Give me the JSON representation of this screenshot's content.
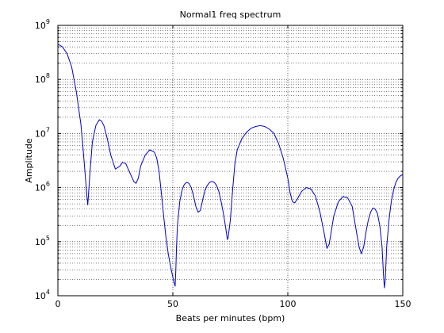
{
  "chart_data": {
    "type": "line",
    "title": "Normal1 freq spectrum",
    "xlabel": "Beats per minutes (bpm)",
    "ylabel": "Amplitude",
    "xlim": [
      0,
      150
    ],
    "ylim": [
      10000,
      1000000000
    ],
    "yscale": "log",
    "grid": true,
    "x_ticks": [
      0,
      50,
      100,
      150
    ],
    "x_tick_labels": [
      "0",
      "50",
      "100",
      "150"
    ],
    "y_ticks": [
      10000,
      100000,
      1000000,
      10000000,
      100000000,
      1000000000
    ],
    "y_tick_labels": [
      {
        "base": "10",
        "exp": "4"
      },
      {
        "base": "10",
        "exp": "5"
      },
      {
        "base": "10",
        "exp": "6"
      },
      {
        "base": "10",
        "exp": "7"
      },
      {
        "base": "10",
        "exp": "8"
      },
      {
        "base": "10",
        "exp": "9"
      }
    ],
    "series": [
      {
        "color": "#0000cc",
        "x": [
          0,
          2,
          4,
          6,
          8,
          10,
          11,
          12,
          12.6,
          13,
          14,
          15,
          16.5,
          18,
          19,
          20,
          21.5,
          23,
          25,
          27,
          28,
          29.5,
          31,
          33,
          34,
          35,
          36,
          38,
          40,
          42,
          43,
          44,
          45,
          46,
          47,
          48,
          49,
          50,
          50.5,
          51,
          51.3,
          51.6,
          52,
          53,
          54,
          55,
          56,
          57,
          58,
          59,
          60,
          61,
          62,
          63,
          64,
          65,
          66,
          67,
          68,
          69,
          70,
          71,
          72,
          73,
          73.7,
          74,
          75,
          76,
          77,
          78,
          80,
          82,
          84,
          86,
          88,
          90,
          92,
          94,
          96,
          98,
          100,
          101,
          102,
          103,
          104,
          106,
          108,
          110,
          112,
          114,
          116,
          117,
          118,
          120,
          122,
          124,
          126,
          128,
          129,
          130,
          131,
          132,
          133,
          134,
          135,
          136,
          137,
          138,
          139,
          140,
          141,
          141.6,
          142,
          142.4,
          143,
          144,
          145,
          146,
          147,
          148,
          149,
          150
        ],
        "y": [
          450000000,
          400000000,
          300000000,
          170000000,
          60000000,
          15000000,
          5000000,
          1500000,
          700000,
          480000,
          2000000,
          7000000,
          14000000,
          18000000,
          17000000,
          14000000,
          8000000,
          4000000,
          2200000,
          2500000,
          2900000,
          2800000,
          2000000,
          1300000,
          1200000,
          1500000,
          2500000,
          4000000,
          5000000,
          4500000,
          3500000,
          2000000,
          800000,
          300000,
          120000,
          60000,
          35000,
          22000,
          18000,
          15000,
          30000,
          80000,
          200000,
          550000,
          900000,
          1150000,
          1250000,
          1200000,
          1000000,
          700000,
          450000,
          350000,
          380000,
          600000,
          900000,
          1100000,
          1250000,
          1300000,
          1250000,
          1100000,
          850000,
          550000,
          330000,
          180000,
          110000,
          115000,
          250000,
          900000,
          2800000,
          5000000,
          8000000,
          10500000,
          12500000,
          13500000,
          14000000,
          13500000,
          12000000,
          10000000,
          6500000,
          3500000,
          1500000,
          800000,
          550000,
          520000,
          600000,
          850000,
          1000000,
          950000,
          700000,
          350000,
          130000,
          75000,
          90000,
          300000,
          550000,
          680000,
          650000,
          450000,
          250000,
          140000,
          80000,
          60000,
          80000,
          150000,
          250000,
          350000,
          420000,
          400000,
          330000,
          200000,
          80000,
          25000,
          14000,
          20000,
          80000,
          250000,
          550000,
          900000,
          1250000,
          1500000,
          1650000,
          1750000
        ]
      }
    ]
  }
}
